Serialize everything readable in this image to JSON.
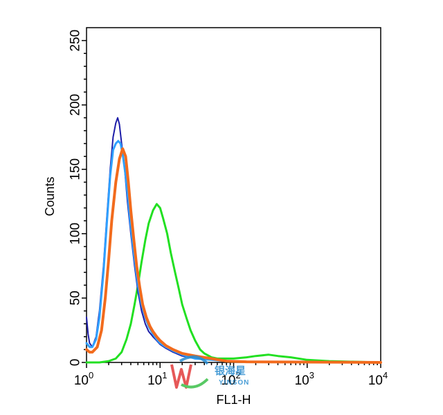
{
  "chart_data": {
    "type": "line",
    "xlabel": "FL1-H",
    "ylabel": "Counts",
    "xscale": "log",
    "xlim": [
      1,
      10000
    ],
    "ylim": [
      0,
      260
    ],
    "yticks": [
      0,
      50,
      100,
      150,
      200,
      250
    ],
    "xticks": [
      {
        "base": "10",
        "exp": "0"
      },
      {
        "base": "10",
        "exp": "1"
      },
      {
        "base": "10",
        "exp": "2"
      },
      {
        "base": "10",
        "exp": "3"
      },
      {
        "base": "10",
        "exp": "4"
      }
    ],
    "grid": false,
    "series": [
      {
        "color": "#1c1ca8",
        "stroke": 2,
        "x": [
          1.0,
          1.05,
          1.1,
          1.2,
          1.35,
          1.5,
          1.7,
          1.9,
          2.1,
          2.3,
          2.5,
          2.65,
          2.8,
          3.0,
          3.3,
          3.6,
          4.0,
          4.5,
          5.0,
          5.6,
          6.3,
          7.0,
          8.0,
          9.0,
          10.0,
          12.0,
          15.0,
          20.0,
          30.0,
          50.0,
          80.0,
          150.0,
          500.0,
          2000.0,
          10000.0
        ],
        "values": [
          35,
          22,
          15,
          12,
          20,
          40,
          75,
          115,
          150,
          175,
          186,
          190,
          185,
          170,
          150,
          125,
          100,
          75,
          55,
          40,
          30,
          24,
          20,
          17,
          14,
          11,
          8,
          5,
          3,
          2,
          1,
          0.5,
          0.3,
          0.2,
          0
        ]
      },
      {
        "color": "#2fa0ff",
        "stroke": 3,
        "x": [
          1.0,
          1.1,
          1.2,
          1.35,
          1.5,
          1.7,
          1.9,
          2.1,
          2.3,
          2.5,
          2.7,
          2.9,
          3.1,
          3.4,
          3.7,
          4.0,
          4.5,
          5.0,
          5.6,
          6.3,
          7.0,
          8.0,
          9.0,
          10.0,
          12.0,
          15.0,
          20.0,
          30.0,
          50.0,
          80.0,
          150.0,
          500.0,
          2000.0,
          10000.0
        ],
        "values": [
          15,
          12,
          12,
          18,
          35,
          70,
          110,
          145,
          165,
          170,
          172,
          170,
          162,
          145,
          125,
          105,
          80,
          60,
          45,
          35,
          28,
          22,
          18,
          15,
          12,
          9,
          6,
          3,
          2,
          1,
          0.5,
          0.3,
          0.2,
          0
        ]
      },
      {
        "color": "#f26b1d",
        "stroke": 4,
        "x": [
          1.0,
          1.1,
          1.2,
          1.4,
          1.6,
          1.8,
          2.0,
          2.2,
          2.5,
          2.8,
          3.1,
          3.4,
          3.7,
          4.0,
          4.4,
          4.8,
          5.3,
          5.8,
          6.5,
          7.3,
          8.0,
          9.0,
          10.0,
          12.0,
          15.0,
          20.0,
          30.0,
          50.0,
          80.0,
          150.0,
          500.0,
          2000.0,
          10000.0
        ],
        "values": [
          10,
          8,
          8,
          12,
          25,
          50,
          80,
          110,
          140,
          158,
          166,
          160,
          140,
          118,
          95,
          75,
          58,
          45,
          35,
          28,
          24,
          20,
          17,
          13,
          10,
          7,
          5,
          3,
          1,
          0.5,
          0.3,
          0.2,
          0
        ]
      },
      {
        "color": "#22e022",
        "stroke": 3,
        "x": [
          1.0,
          1.5,
          2.0,
          2.5,
          3.0,
          3.5,
          4.0,
          4.5,
          5.0,
          5.6,
          6.3,
          7.0,
          8.0,
          9.0,
          10.0,
          11.0,
          12.5,
          14.0,
          16.0,
          18.0,
          20.0,
          23.0,
          26.0,
          30.0,
          35.0,
          40.0,
          50.0,
          60.0,
          80.0,
          100.0,
          150.0,
          200.0,
          300.0,
          400.0,
          600.0,
          1000.0,
          2000.0,
          10000.0
        ],
        "values": [
          0,
          0,
          1,
          3,
          8,
          18,
          30,
          45,
          60,
          78,
          95,
          108,
          118,
          123,
          120,
          112,
          100,
          85,
          70,
          57,
          45,
          34,
          25,
          17,
          10,
          7,
          4,
          3,
          3,
          3,
          4,
          5,
          6,
          5,
          4,
          2,
          1,
          0
        ]
      }
    ]
  },
  "watermark": {
    "title": "银海星",
    "subtitle": "YINSON"
  }
}
